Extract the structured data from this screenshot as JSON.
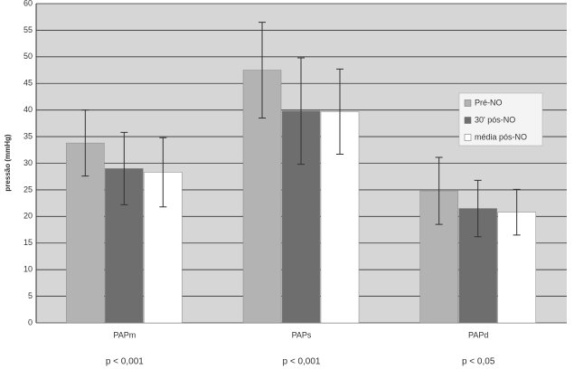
{
  "chart_data": {
    "type": "bar",
    "y_label": "pressão (mmHg)",
    "categories": [
      "PAPm",
      "PAPs",
      "PAPd"
    ],
    "annotations": [
      "p < 0,001",
      "p < 0,001",
      "p < 0,05"
    ],
    "series": [
      {
        "name": "Pré-NO",
        "color": "#b3b3b3",
        "values": [
          33.8,
          47.5,
          24.8
        ],
        "errors": [
          6.2,
          9,
          6.3
        ]
      },
      {
        "name": "30' pós-NO",
        "color": "#6e6e6e",
        "values": [
          29,
          39.8,
          21.5
        ],
        "errors": [
          6.8,
          10,
          5.3
        ]
      },
      {
        "name": "média pós-NO",
        "color": "#ffffff",
        "values": [
          28.3,
          39.7,
          20.8
        ],
        "errors": [
          6.5,
          8,
          4.3
        ]
      }
    ],
    "ylim": [
      0,
      60
    ],
    "yticks": [
      0,
      5,
      10,
      15,
      20,
      25,
      30,
      35,
      40,
      45,
      50,
      55,
      60
    ],
    "grid": true,
    "legend": "right"
  }
}
